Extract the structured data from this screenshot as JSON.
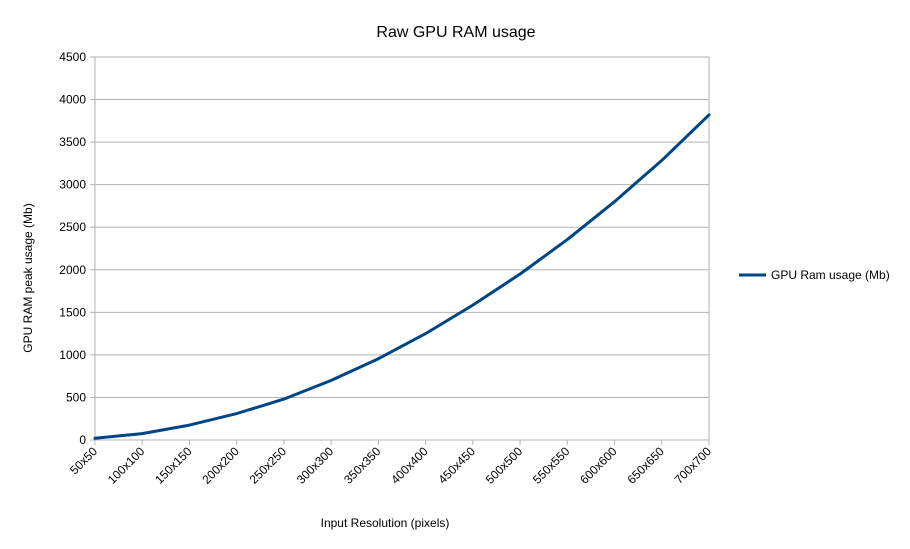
{
  "chart_data": {
    "type": "line",
    "title": "Raw GPU RAM usage",
    "xlabel": "Input Resolution (pixels)",
    "ylabel": "GPU RAM peak usage (Mb)",
    "categories": [
      "50x50",
      "100x100",
      "150x150",
      "200x200",
      "250x250",
      "300x300",
      "350x350",
      "400x400",
      "450x450",
      "500x500",
      "550x550",
      "600x600",
      "650x650",
      "700x700"
    ],
    "ylim": [
      0,
      4500
    ],
    "yticks": [
      0,
      500,
      1000,
      1500,
      2000,
      2500,
      3000,
      3500,
      4000,
      4500
    ],
    "grid": true,
    "legend_position": "right",
    "series": [
      {
        "name": "GPU Ram usage (Mb)",
        "color": "#004586",
        "values": [
          20,
          75,
          175,
          310,
          480,
          700,
          955,
          1250,
          1585,
          1950,
          2355,
          2800,
          3285,
          3820
        ]
      }
    ]
  }
}
